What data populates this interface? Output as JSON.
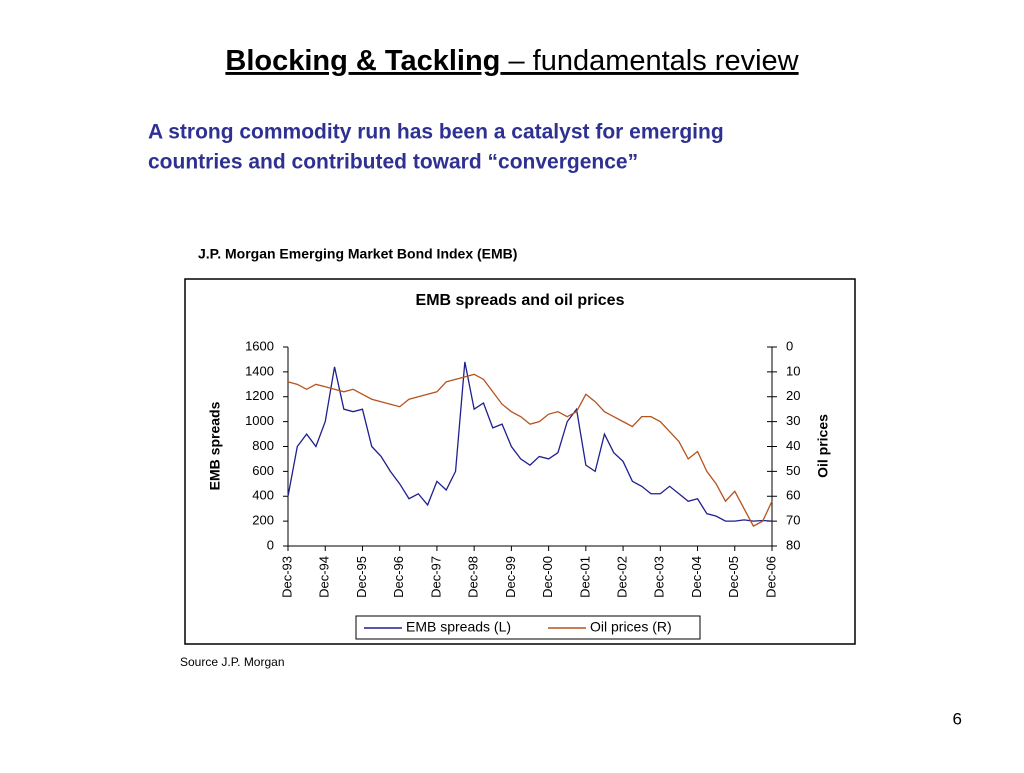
{
  "header": {
    "title_bold": "Blocking & Tackling",
    "title_rest": " – fundamentals review",
    "subtitle_line1": "A strong commodity run has been a catalyst for emerging",
    "subtitle_line2": "countries and contributed toward “convergence”"
  },
  "caption": "J.P. Morgan Emerging Market Bond Index (EMB)",
  "source": "Source J.P. Morgan",
  "page_number": "6",
  "chart_data": {
    "type": "line",
    "title": "EMB spreads and oil prices",
    "ylabel": "EMB spreads",
    "y2label": "Oil prices",
    "categories": [
      "Dec-93",
      null,
      null,
      null,
      "Dec-94",
      null,
      null,
      null,
      "Dec-95",
      null,
      null,
      null,
      "Dec-96",
      null,
      null,
      null,
      "Dec-97",
      null,
      null,
      null,
      "Dec-98",
      null,
      null,
      null,
      "Dec-99",
      null,
      null,
      null,
      "Dec-00",
      null,
      null,
      null,
      "Dec-01",
      null,
      null,
      null,
      "Dec-02",
      null,
      null,
      null,
      "Dec-03",
      null,
      null,
      null,
      "Dec-04",
      null,
      null,
      null,
      "Dec-05",
      null,
      null,
      null,
      "Dec-06"
    ],
    "ylim": [
      0,
      1600
    ],
    "yticks": [
      0,
      200,
      400,
      600,
      800,
      1000,
      1200,
      1400,
      1600
    ],
    "y2lim": [
      80,
      0
    ],
    "y2ticks": [
      0,
      10,
      20,
      30,
      40,
      50,
      60,
      70,
      80
    ],
    "grid": false,
    "legend": "bottom",
    "series": [
      {
        "name": "EMB spreads (L)",
        "color": "#1f1f8f",
        "values": [
          400,
          800,
          900,
          800,
          1000,
          1440,
          1100,
          1080,
          1100,
          800,
          720,
          600,
          500,
          380,
          420,
          330,
          520,
          450,
          600,
          1480,
          1100,
          1150,
          950,
          980,
          800,
          700,
          650,
          720,
          700,
          750,
          1000,
          1100,
          650,
          600,
          900,
          750,
          680,
          520,
          480,
          420,
          420,
          480,
          420,
          360,
          380,
          260,
          240,
          200,
          200,
          210,
          200,
          205,
          200
        ]
      },
      {
        "name": "Oil prices (R)",
        "color": "#b5531e",
        "axis": "y2",
        "values": [
          14,
          15,
          17,
          15,
          16,
          17,
          18,
          17,
          19,
          21,
          22,
          23,
          24,
          21,
          20,
          19,
          18,
          14,
          13,
          12,
          11,
          13,
          18,
          23,
          26,
          28,
          31,
          30,
          27,
          26,
          28,
          26,
          19,
          22,
          26,
          28,
          30,
          32,
          28,
          28,
          30,
          34,
          38,
          45,
          42,
          50,
          55,
          62,
          58,
          65,
          72,
          70,
          62
        ]
      }
    ]
  }
}
